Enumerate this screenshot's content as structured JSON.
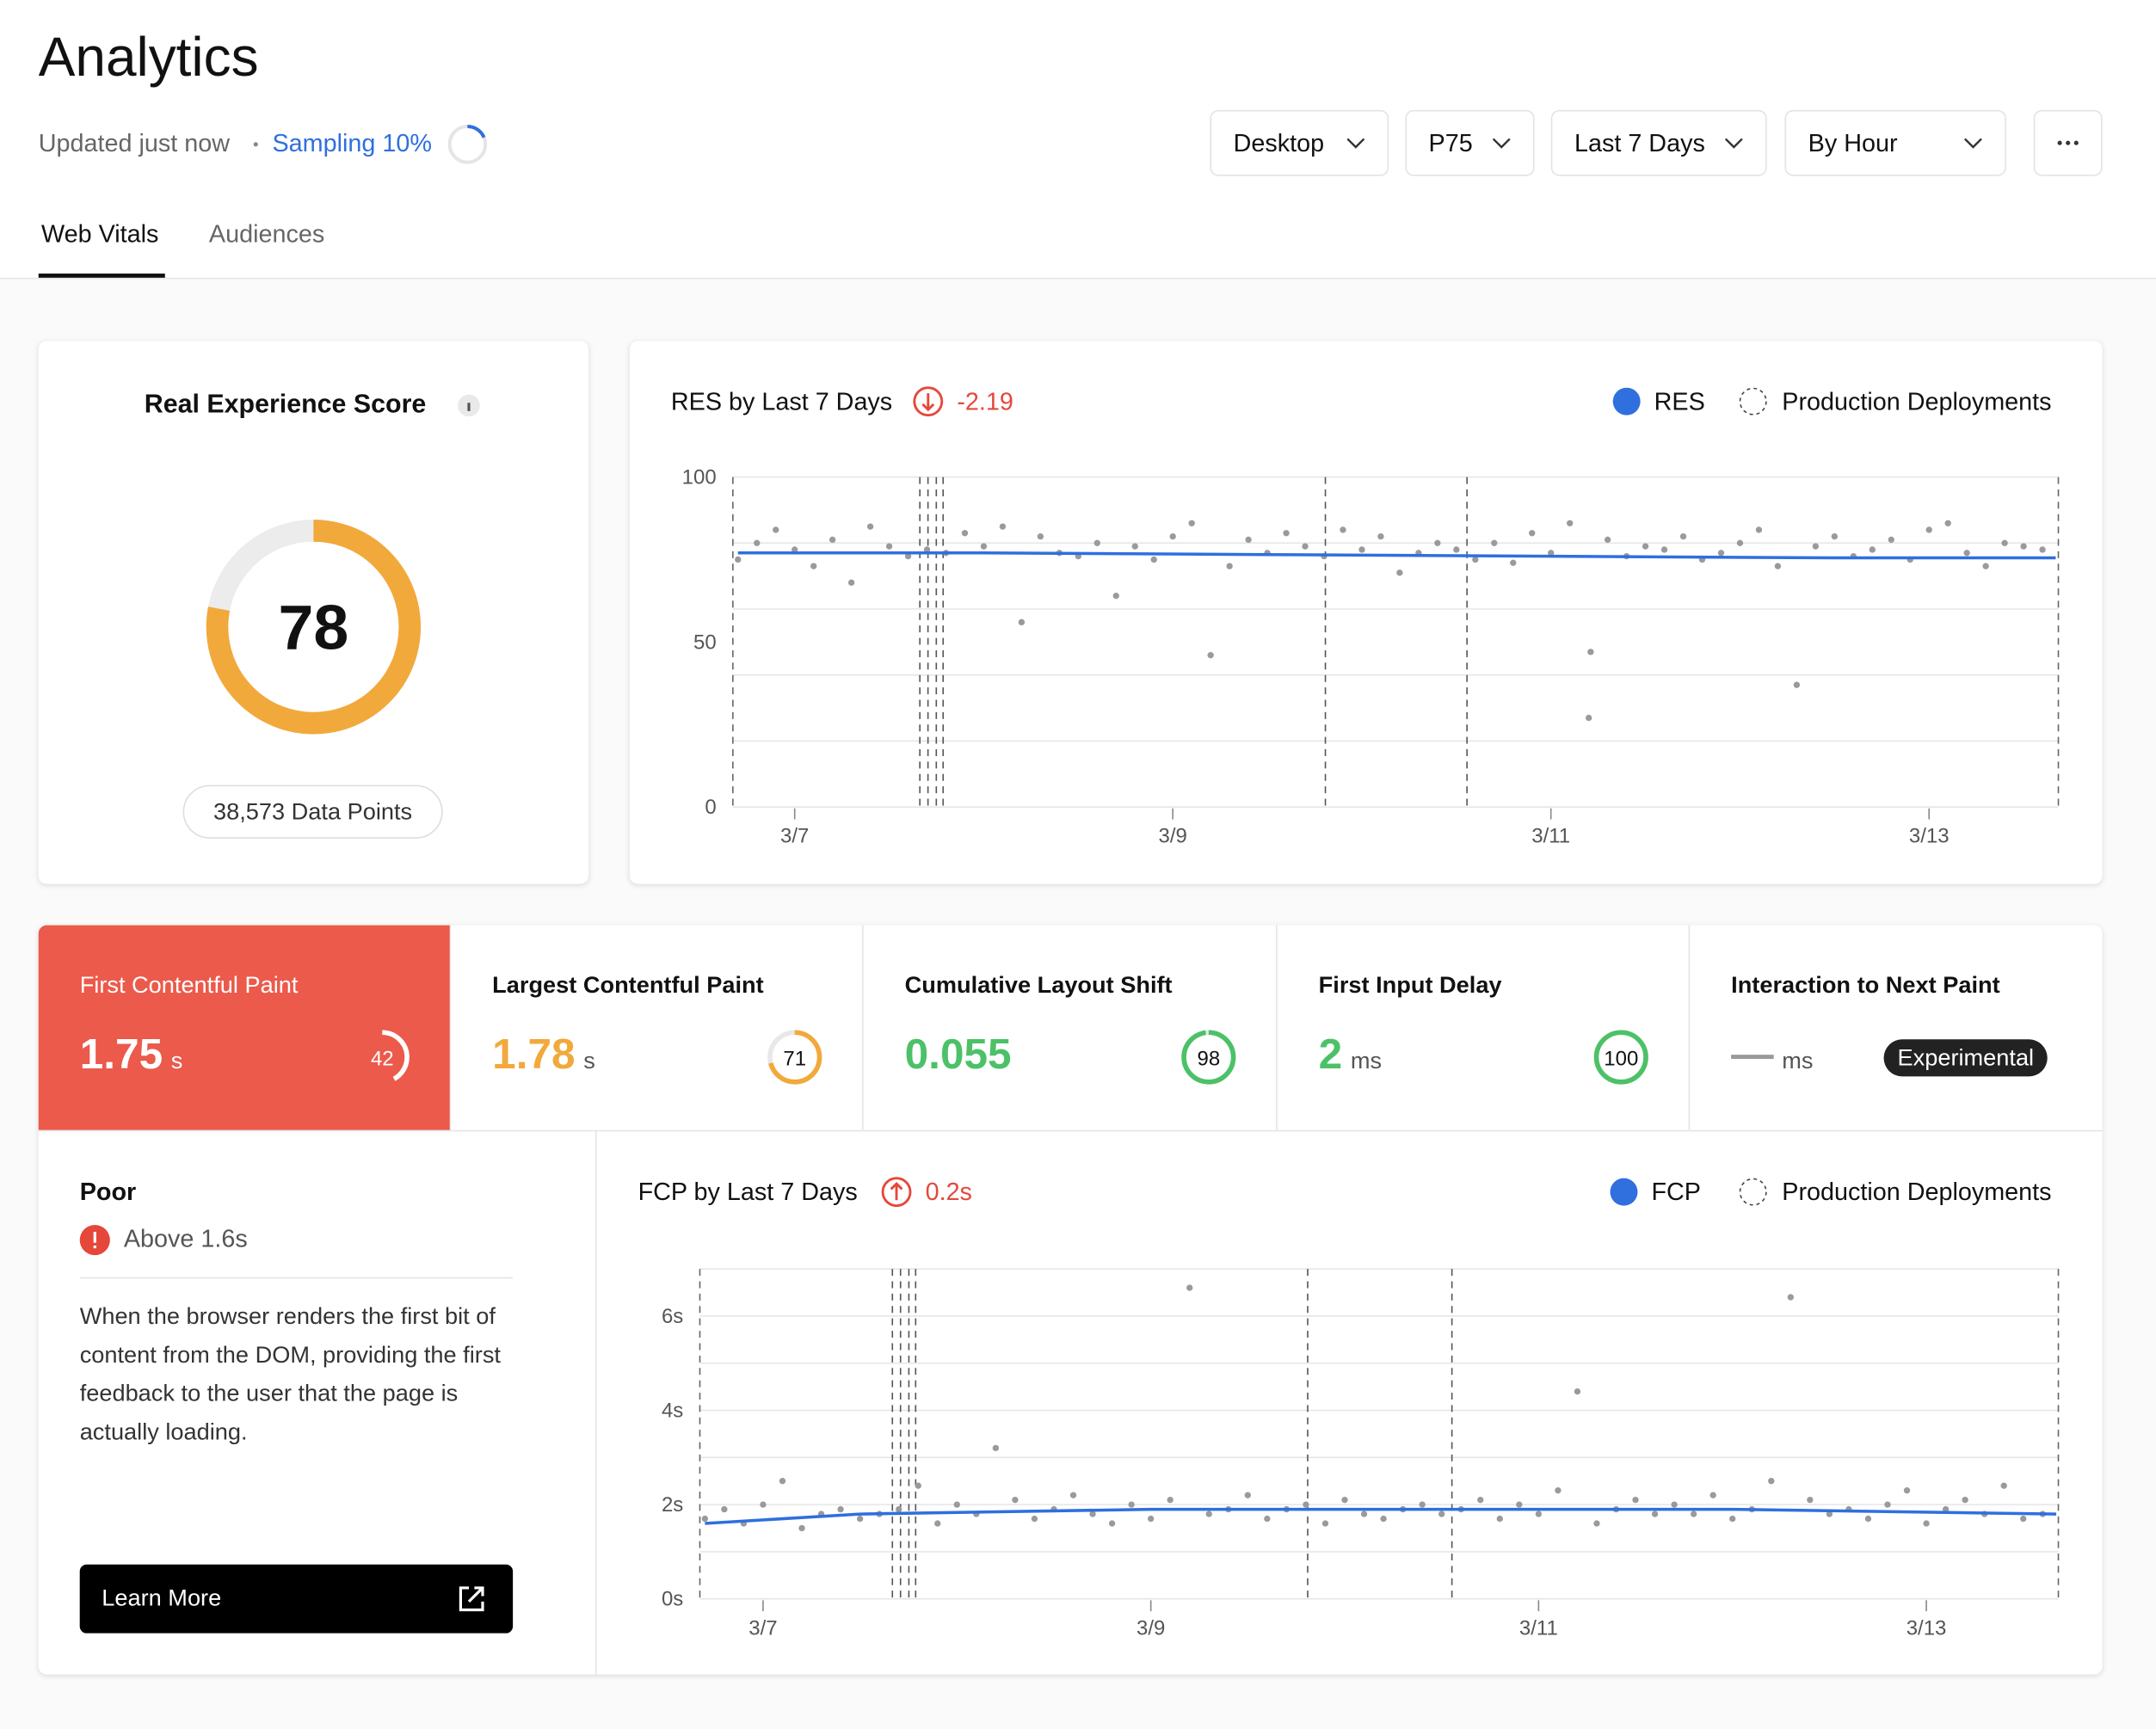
{
  "header": {
    "title": "Analytics",
    "status": "Updated just now",
    "sampling": "Sampling 10%"
  },
  "filters": [
    "Desktop",
    "P75",
    "Last 7 Days",
    "By Hour"
  ],
  "tabs": [
    "Web Vitals",
    "Audiences"
  ],
  "score_card": {
    "title": "Real Experience Score",
    "score": 78,
    "color": "#f2a93b",
    "data_points": "38,573 Data Points"
  },
  "res_chart": {
    "type": "scatter",
    "title": "RES by Last 7 Days",
    "change": -2.19,
    "xlim": [
      6.673,
      13.684
    ],
    "ylim": [
      0,
      100
    ],
    "xticks": [
      {
        "value": 7,
        "label": "3/7"
      },
      {
        "value": 9,
        "label": "3/9"
      },
      {
        "value": 11,
        "label": "3/11"
      },
      {
        "value": 13,
        "label": "3/13"
      }
    ],
    "yticks": [
      0,
      50,
      100
    ],
    "ygrid": [
      0,
      20,
      40,
      60,
      80,
      100
    ],
    "trend": {
      "name": "RES",
      "color": "#2f6fde",
      "x": [
        6.7,
        8,
        9.5,
        11,
        12.5,
        13.67
      ],
      "values": [
        77,
        77,
        76.5,
        76,
        75.5,
        75.5
      ]
    },
    "deployments": {
      "name": "Production Deployments",
      "x": [
        7.662,
        7.705,
        7.749,
        7.785,
        9.807,
        10.556
      ]
    },
    "points": {
      "color": "#9a9a9a",
      "x": [
        6.7,
        6.8,
        6.9,
        7.0,
        7.1,
        7.2,
        7.3,
        7.4,
        7.5,
        7.6,
        7.7,
        7.8,
        7.9,
        8.0,
        8.1,
        8.2,
        8.3,
        8.4,
        8.5,
        8.6,
        8.7,
        8.8,
        8.9,
        9.0,
        9.1,
        9.2,
        9.3,
        9.4,
        9.5,
        9.6,
        9.7,
        9.8,
        9.9,
        10.0,
        10.1,
        10.2,
        10.3,
        10.4,
        10.5,
        10.6,
        10.7,
        10.8,
        10.9,
        11.0,
        11.1,
        11.2,
        11.3,
        11.4,
        11.5,
        11.6,
        11.7,
        11.8,
        11.9,
        12.0,
        12.1,
        12.2,
        12.3,
        12.4,
        12.5,
        12.6,
        12.7,
        12.8,
        12.9,
        13.0,
        13.1,
        13.2,
        13.3,
        13.4,
        13.5,
        13.6,
        11.21
      ],
      "values": [
        75,
        80,
        84,
        78,
        73,
        81,
        68,
        85,
        79,
        76,
        78,
        77,
        83,
        79,
        85,
        56,
        82,
        77,
        76,
        80,
        64,
        79,
        75,
        82,
        86,
        46,
        73,
        81,
        77,
        83,
        79,
        76,
        84,
        78,
        82,
        71,
        77,
        80,
        78,
        75,
        80,
        74,
        83,
        77,
        86,
        27,
        81,
        76,
        79,
        78,
        82,
        75,
        77,
        80,
        84,
        73,
        37,
        79,
        82,
        76,
        78,
        81,
        75,
        84,
        86,
        77,
        73,
        80,
        79,
        78,
        47
      ]
    }
  },
  "metrics": [
    {
      "name": "First Contentful Paint",
      "value": 1.75,
      "unit": "s",
      "score": 42,
      "color": "#ffffff"
    },
    {
      "name": "Largest Contentful Paint",
      "value": 1.78,
      "unit": "s",
      "score": 71,
      "color": "#f2a93b"
    },
    {
      "name": "Cumulative Layout Shift",
      "value": 0.055,
      "score": 98,
      "color": "#4cc168"
    },
    {
      "name": "First Input Delay",
      "value": 2,
      "unit": "ms",
      "score": 100,
      "color": "#4cc168"
    },
    {
      "name": "Interaction to Next Paint",
      "value": "—",
      "unit": "ms",
      "badge": "Experimental",
      "color": "#9a9a9a"
    }
  ],
  "detail": {
    "rating": "Poor",
    "threshold": "Above 1.6s",
    "description": "When the browser renders the first bit of content from the DOM, providing the first feedback to the user that the page is actually loading.",
    "button": "Learn More"
  },
  "fcp_chart": {
    "type": "scatter",
    "title": "FCP by Last 7 Days",
    "change": {
      "value": 0.2,
      "label": "0.2s"
    },
    "xlim": [
      6.674,
      13.681
    ],
    "ylim": [
      0,
      7
    ],
    "xticks": [
      {
        "value": 7,
        "label": "3/7"
      },
      {
        "value": 9,
        "label": "3/9"
      },
      {
        "value": 11,
        "label": "3/11"
      },
      {
        "value": 13,
        "label": "3/13"
      }
    ],
    "yticks": [
      {
        "value": 0,
        "label": "0s"
      },
      {
        "value": 2,
        "label": "2s"
      },
      {
        "value": 4,
        "label": "4s"
      },
      {
        "value": 6,
        "label": "6s"
      }
    ],
    "ygrid": [
      0,
      1,
      2,
      3,
      4,
      5,
      6,
      7
    ],
    "trend": {
      "name": "FCP",
      "color": "#2f6fde",
      "x": [
        6.7,
        7.5,
        9,
        10.5,
        12,
        13.67
      ],
      "values": [
        1.6,
        1.8,
        1.9,
        1.9,
        1.9,
        1.8
      ]
    },
    "deployments": {
      "name": "Production Deployments",
      "x": [
        7.667,
        7.709,
        7.752,
        7.787,
        9.809,
        10.553
      ]
    },
    "points": {
      "color": "#9a9a9a",
      "x": [
        6.7,
        6.8,
        6.9,
        7.0,
        7.1,
        7.2,
        7.3,
        7.4,
        7.5,
        7.6,
        7.7,
        7.8,
        7.9,
        8.0,
        8.1,
        8.2,
        8.3,
        8.4,
        8.5,
        8.6,
        8.7,
        8.8,
        8.9,
        9.0,
        9.1,
        9.2,
        9.3,
        9.4,
        9.5,
        9.6,
        9.7,
        9.8,
        9.9,
        10.0,
        10.1,
        10.2,
        10.3,
        10.4,
        10.5,
        10.6,
        10.7,
        10.8,
        10.9,
        11.0,
        11.1,
        11.2,
        11.3,
        11.4,
        11.5,
        11.6,
        11.7,
        11.8,
        11.9,
        12.0,
        12.1,
        12.2,
        12.3,
        12.4,
        12.5,
        12.6,
        12.7,
        12.8,
        12.9,
        13.0,
        13.1,
        13.2,
        13.3,
        13.4,
        13.5,
        13.6
      ],
      "values": [
        1.7,
        1.9,
        1.6,
        2.0,
        2.5,
        1.5,
        1.8,
        1.9,
        1.7,
        1.8,
        1.9,
        2.4,
        1.6,
        2.0,
        1.8,
        3.2,
        2.1,
        1.7,
        1.9,
        2.2,
        1.8,
        1.6,
        2.0,
        1.7,
        2.1,
        6.6,
        1.8,
        1.9,
        2.2,
        1.7,
        1.9,
        2.0,
        1.6,
        2.1,
        1.8,
        1.7,
        1.9,
        2.0,
        1.8,
        1.9,
        2.1,
        1.7,
        2.0,
        1.8,
        2.3,
        4.4,
        1.6,
        1.9,
        2.1,
        1.8,
        2.0,
        1.8,
        2.2,
        1.7,
        1.9,
        2.5,
        6.4,
        2.1,
        1.8,
        1.9,
        1.7,
        2.0,
        2.3,
        1.6,
        1.9,
        2.1,
        1.8,
        2.4,
        1.7,
        1.8
      ]
    }
  }
}
